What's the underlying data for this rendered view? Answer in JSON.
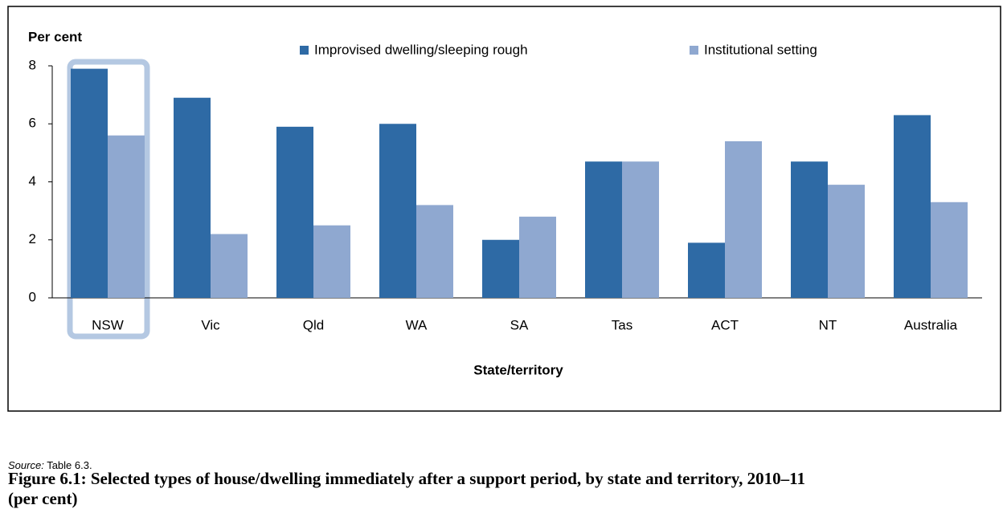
{
  "chart_data": {
    "type": "bar",
    "y_label": "Per cent",
    "x_label": "State/territory",
    "categories": [
      "NSW",
      "Vic",
      "Qld",
      "WA",
      "SA",
      "Tas",
      "ACT",
      "NT",
      "Australia"
    ],
    "series": [
      {
        "name": "Improvised dwelling/sleeping rough",
        "color": "#2e6aa5",
        "values": [
          7.9,
          6.9,
          5.9,
          6.0,
          2.0,
          4.7,
          1.9,
          4.7,
          6.3
        ]
      },
      {
        "name": "Institutional setting",
        "color": "#8fa8d0",
        "values": [
          5.6,
          2.2,
          2.5,
          3.2,
          2.8,
          4.7,
          5.4,
          3.9,
          3.3
        ]
      }
    ],
    "ylim": [
      0,
      8
    ],
    "yticks": [
      0,
      2,
      4,
      6,
      8
    ],
    "grid": false,
    "legend": "top",
    "source_label": "Source:",
    "source": "Table 6.3.",
    "caption": "Figure 6.1: Selected types of house/dwelling immediately after a support period, by state and territory, 2010–11 (per cent)"
  }
}
